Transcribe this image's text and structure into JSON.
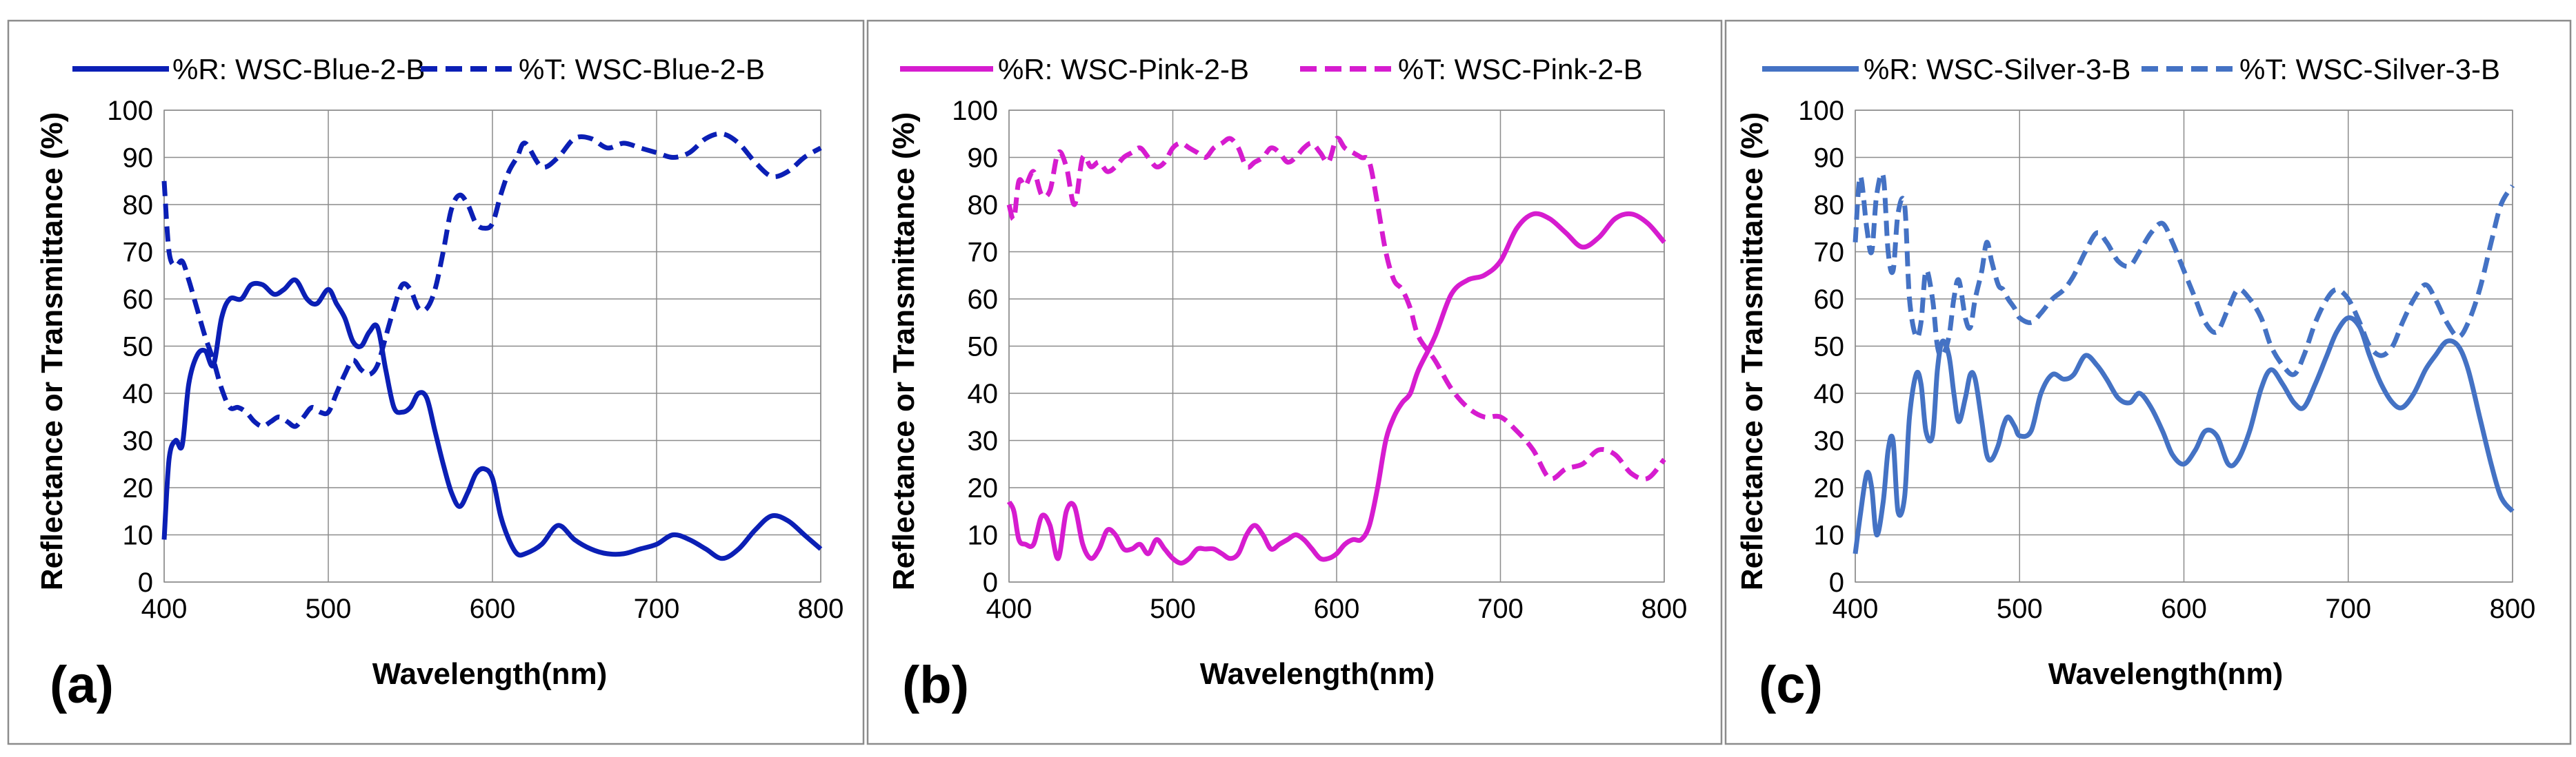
{
  "figure": {
    "panel_tags": [
      "(a)",
      "(b)",
      "(c)"
    ]
  },
  "chart_data": [
    {
      "type": "line",
      "panel_tag": "(a)",
      "title": "",
      "xlabel": "Wavelength(nm)",
      "ylabel": "Reflectance or Transmittance  (%)",
      "xlim": [
        400,
        800
      ],
      "ylim": [
        0,
        100
      ],
      "xticks": [
        400,
        500,
        600,
        700,
        800
      ],
      "yticks": [
        0,
        10,
        20,
        30,
        40,
        50,
        60,
        70,
        80,
        90,
        100
      ],
      "grid": true,
      "legend_position": "top",
      "series": [
        {
          "name": "%R: WSC-Blue-2-B",
          "color": "#0b1fb5",
          "dash": "solid",
          "x": [
            400,
            403,
            407,
            411,
            415,
            420,
            425,
            430,
            435,
            440,
            447,
            453,
            460,
            467,
            473,
            480,
            487,
            493,
            500,
            505,
            510,
            515,
            520,
            525,
            530,
            535,
            540,
            545,
            550,
            555,
            560,
            565,
            570,
            575,
            580,
            585,
            590,
            595,
            600,
            605,
            610,
            615,
            620,
            630,
            640,
            650,
            660,
            670,
            680,
            690,
            700,
            710,
            720,
            730,
            740,
            750,
            760,
            770,
            780,
            790,
            800
          ],
          "values": [
            9,
            26,
            30,
            29,
            42,
            48,
            49,
            46,
            56,
            60,
            60,
            63,
            63,
            61,
            62,
            64,
            60,
            59,
            62,
            59,
            56,
            51,
            50,
            53,
            54,
            45,
            37,
            36,
            37,
            40,
            39,
            32,
            25,
            19,
            16,
            19,
            23,
            24,
            22,
            14,
            9,
            6,
            6,
            8,
            12,
            9,
            7,
            6,
            6,
            7,
            8,
            10,
            9,
            7,
            5,
            7,
            11,
            14,
            13,
            10,
            7
          ]
        },
        {
          "name": "%T: WSC-Blue-2-B",
          "color": "#0b1fb5",
          "dash": "dashed",
          "x": [
            400,
            403,
            407,
            411,
            415,
            420,
            425,
            430,
            435,
            440,
            445,
            450,
            455,
            460,
            465,
            470,
            475,
            480,
            485,
            490,
            495,
            500,
            505,
            510,
            515,
            520,
            525,
            530,
            535,
            540,
            545,
            550,
            555,
            560,
            565,
            570,
            575,
            580,
            585,
            590,
            595,
            600,
            605,
            610,
            615,
            620,
            630,
            640,
            650,
            660,
            670,
            680,
            690,
            700,
            710,
            720,
            730,
            740,
            750,
            760,
            770,
            780,
            790,
            800
          ],
          "values": [
            85,
            70,
            67,
            68,
            64,
            58,
            52,
            47,
            41,
            37,
            37,
            36,
            34,
            33,
            34,
            35,
            34,
            33,
            35,
            37,
            36,
            36,
            40,
            44,
            47,
            45,
            44,
            46,
            52,
            58,
            63,
            62,
            58,
            58,
            62,
            70,
            79,
            82,
            80,
            76,
            75,
            76,
            82,
            87,
            90,
            93,
            88,
            90,
            94,
            94,
            92,
            93,
            92,
            91,
            90,
            91,
            94,
            95,
            93,
            89,
            86,
            87,
            90,
            92
          ]
        }
      ]
    },
    {
      "type": "line",
      "panel_tag": "(b)",
      "title": "",
      "xlabel": "Wavelength(nm)",
      "ylabel": "Reflectance or Transmittance  (%)",
      "xlim": [
        400,
        800
      ],
      "ylim": [
        0,
        100
      ],
      "xticks": [
        400,
        500,
        600,
        700,
        800
      ],
      "yticks": [
        0,
        10,
        20,
        30,
        40,
        50,
        60,
        70,
        80,
        90,
        100
      ],
      "grid": true,
      "legend_position": "top",
      "series": [
        {
          "name": "%R: WSC-Pink-2-B",
          "color": "#d61ccf",
          "dash": "solid",
          "x": [
            400,
            403,
            406,
            410,
            415,
            420,
            425,
            430,
            435,
            440,
            445,
            450,
            455,
            460,
            465,
            470,
            475,
            480,
            485,
            490,
            495,
            500,
            505,
            510,
            515,
            520,
            525,
            530,
            535,
            540,
            545,
            550,
            555,
            560,
            565,
            570,
            575,
            580,
            585,
            590,
            595,
            600,
            605,
            610,
            615,
            620,
            625,
            630,
            635,
            640,
            645,
            650,
            660,
            670,
            680,
            690,
            700,
            710,
            720,
            730,
            740,
            750,
            760,
            770,
            780,
            790,
            800
          ],
          "values": [
            17,
            15,
            9,
            8,
            8,
            14,
            12,
            5,
            15,
            16,
            8,
            5,
            7,
            11,
            10,
            7,
            7,
            8,
            6,
            9,
            7,
            5,
            4,
            5,
            7,
            7,
            7,
            6,
            5,
            6,
            10,
            12,
            10,
            7,
            8,
            9,
            10,
            9,
            7,
            5,
            5,
            6,
            8,
            9,
            9,
            12,
            20,
            30,
            35,
            38,
            40,
            45,
            52,
            61,
            64,
            65,
            68,
            75,
            78,
            77,
            74,
            71,
            73,
            77,
            78,
            76,
            72
          ]
        },
        {
          "name": "%T: WSC-Pink-2-B",
          "color": "#d61ccf",
          "dash": "dashed",
          "x": [
            400,
            403,
            406,
            410,
            415,
            420,
            425,
            430,
            435,
            440,
            445,
            450,
            455,
            460,
            465,
            470,
            475,
            480,
            485,
            490,
            495,
            500,
            505,
            510,
            515,
            520,
            525,
            530,
            535,
            540,
            545,
            550,
            555,
            560,
            565,
            570,
            575,
            580,
            585,
            590,
            595,
            600,
            605,
            610,
            615,
            620,
            625,
            630,
            635,
            640,
            645,
            650,
            660,
            670,
            680,
            690,
            700,
            710,
            720,
            730,
            740,
            750,
            760,
            770,
            780,
            790,
            800
          ],
          "values": [
            80,
            77,
            85,
            84,
            87,
            82,
            83,
            91,
            88,
            80,
            90,
            88,
            89,
            87,
            88,
            90,
            91,
            92,
            90,
            88,
            89,
            92,
            93,
            92,
            91,
            90,
            92,
            93,
            94,
            92,
            88,
            89,
            90,
            92,
            91,
            89,
            90,
            92,
            93,
            91,
            89,
            94,
            92,
            91,
            90,
            89,
            80,
            70,
            64,
            62,
            58,
            52,
            47,
            41,
            37,
            35,
            35,
            32,
            28,
            22,
            24,
            25,
            28,
            27,
            23,
            22,
            26
          ]
        }
      ]
    },
    {
      "type": "line",
      "panel_tag": "(c)",
      "title": "",
      "xlabel": "Wavelength(nm)",
      "ylabel": "Reflectance or Transmittance  (%)",
      "xlim": [
        400,
        800
      ],
      "ylim": [
        0,
        100
      ],
      "xticks": [
        400,
        500,
        600,
        700,
        800
      ],
      "yticks": [
        0,
        10,
        20,
        30,
        40,
        50,
        60,
        70,
        80,
        90,
        100
      ],
      "grid": true,
      "legend_position": "top",
      "series": [
        {
          "name": "%R: WSC-Silver-3-B",
          "color": "#4472c4",
          "dash": "solid",
          "x": [
            400,
            403,
            407,
            410,
            413,
            417,
            420,
            423,
            426,
            430,
            433,
            437,
            440,
            443,
            447,
            450,
            453,
            457,
            460,
            463,
            467,
            470,
            473,
            477,
            480,
            483,
            487,
            490,
            493,
            497,
            500,
            507,
            513,
            520,
            527,
            533,
            540,
            547,
            553,
            560,
            567,
            573,
            580,
            587,
            593,
            600,
            607,
            613,
            620,
            627,
            633,
            640,
            647,
            653,
            660,
            667,
            673,
            680,
            687,
            693,
            700,
            707,
            713,
            720,
            727,
            733,
            740,
            747,
            753,
            760,
            767,
            773,
            780,
            787,
            793,
            800
          ],
          "values": [
            6,
            14,
            23,
            20,
            10,
            17,
            28,
            30,
            15,
            18,
            35,
            44,
            42,
            32,
            31,
            45,
            51,
            48,
            40,
            34,
            39,
            44,
            43,
            34,
            27,
            26,
            29,
            33,
            35,
            33,
            31,
            32,
            40,
            44,
            43,
            44,
            48,
            46,
            43,
            39,
            38,
            40,
            37,
            32,
            27,
            25,
            28,
            32,
            31,
            25,
            26,
            32,
            41,
            45,
            42,
            38,
            37,
            42,
            48,
            53,
            56,
            54,
            48,
            42,
            38,
            37,
            40,
            45,
            48,
            51,
            50,
            45,
            35,
            25,
            18,
            15
          ]
        },
        {
          "name": "%T: WSC-Silver-3-B",
          "color": "#4472c4",
          "dash": "dashed",
          "x": [
            400,
            403,
            407,
            410,
            413,
            417,
            420,
            423,
            426,
            430,
            433,
            437,
            440,
            443,
            447,
            450,
            453,
            457,
            460,
            463,
            467,
            470,
            473,
            477,
            480,
            483,
            487,
            490,
            493,
            497,
            500,
            507,
            513,
            520,
            527,
            533,
            540,
            547,
            553,
            560,
            567,
            573,
            580,
            587,
            593,
            600,
            607,
            613,
            620,
            627,
            633,
            640,
            647,
            653,
            660,
            667,
            673,
            680,
            687,
            693,
            700,
            707,
            713,
            720,
            727,
            733,
            740,
            747,
            753,
            760,
            767,
            773,
            780,
            787,
            793,
            800
          ],
          "values": [
            72,
            86,
            75,
            70,
            82,
            86,
            70,
            66,
            78,
            80,
            60,
            52,
            55,
            66,
            60,
            50,
            48,
            52,
            60,
            64,
            56,
            54,
            60,
            66,
            72,
            68,
            63,
            62,
            60,
            58,
            56,
            55,
            57,
            60,
            62,
            65,
            70,
            74,
            72,
            68,
            67,
            70,
            74,
            76,
            72,
            66,
            60,
            55,
            53,
            58,
            62,
            60,
            56,
            50,
            46,
            44,
            48,
            55,
            60,
            62,
            60,
            55,
            50,
            48,
            50,
            55,
            60,
            63,
            60,
            55,
            52,
            55,
            62,
            72,
            80,
            84
          ]
        }
      ]
    }
  ]
}
